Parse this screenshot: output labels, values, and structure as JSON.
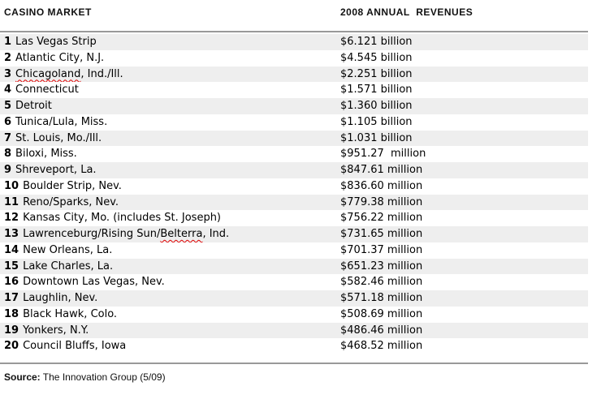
{
  "colors": {
    "stripe": "#eeeeee",
    "rule": "#999999",
    "text": "#000000",
    "squiggle": "#e00000"
  },
  "header": {
    "market_label": "CASINO MARKET",
    "revenue_label": "2008 ANNUAL  REVENUES"
  },
  "source": {
    "label": "Source:",
    "text": " The Innovation Group (5/09)"
  },
  "chart_data": {
    "type": "table",
    "columns": [
      "CASINO MARKET",
      "2008 ANNUAL REVENUES"
    ],
    "rows": [
      {
        "rank": "1",
        "market": "Las Vegas Strip",
        "misspelled": "",
        "suffix": "",
        "revenue": "$6.121 billion",
        "value_usd_millions": 6121
      },
      {
        "rank": "2",
        "market": "Atlantic City, N.J.",
        "misspelled": "",
        "suffix": "",
        "revenue": "$4.545 billion",
        "value_usd_millions": 4545
      },
      {
        "rank": "3",
        "market": "",
        "misspelled": "Chicagoland",
        "suffix": ", Ind./Ill.",
        "revenue": "$2.251 billion",
        "value_usd_millions": 2251
      },
      {
        "rank": "4",
        "market": "Connecticut",
        "misspelled": "",
        "suffix": "",
        "revenue": "$1.571 billion",
        "value_usd_millions": 1571
      },
      {
        "rank": "5",
        "market": "Detroit",
        "misspelled": "",
        "suffix": "",
        "revenue": "$1.360 billion",
        "value_usd_millions": 1360
      },
      {
        "rank": "6",
        "market": "Tunica/Lula, Miss.",
        "misspelled": "",
        "suffix": "",
        "revenue": "$1.105 billion",
        "value_usd_millions": 1105
      },
      {
        "rank": "7",
        "market": "St. Louis, Mo./Ill.",
        "misspelled": "",
        "suffix": "",
        "revenue": "$1.031 billion",
        "value_usd_millions": 1031
      },
      {
        "rank": "8",
        "market": "Biloxi, Miss.",
        "misspelled": "",
        "suffix": "",
        "revenue": "$951.27  million",
        "value_usd_millions": 951.27
      },
      {
        "rank": "9",
        "market": "Shreveport, La.",
        "misspelled": "",
        "suffix": "",
        "revenue": "$847.61 million",
        "value_usd_millions": 847.61
      },
      {
        "rank": "10",
        "market": "Boulder Strip, Nev.",
        "misspelled": "",
        "suffix": "",
        "revenue": "$836.60 million",
        "value_usd_millions": 836.6
      },
      {
        "rank": "11",
        "market": "Reno/Sparks, Nev.",
        "misspelled": "",
        "suffix": "",
        "revenue": "$779.38 million",
        "value_usd_millions": 779.38
      },
      {
        "rank": "12",
        "market": "Kansas City, Mo. (includes St. Joseph)",
        "misspelled": "",
        "suffix": "",
        "revenue": "$756.22 million",
        "value_usd_millions": 756.22
      },
      {
        "rank": "13",
        "market": "Lawrenceburg/Rising Sun/",
        "misspelled": "Belterra",
        "suffix": ", Ind.",
        "revenue": "$731.65 million",
        "value_usd_millions": 731.65
      },
      {
        "rank": "14",
        "market": "New Orleans, La.",
        "misspelled": "",
        "suffix": "",
        "revenue": "$701.37 million",
        "value_usd_millions": 701.37
      },
      {
        "rank": "15",
        "market": "Lake Charles, La.",
        "misspelled": "",
        "suffix": "",
        "revenue": "$651.23 million",
        "value_usd_millions": 651.23
      },
      {
        "rank": "16",
        "market": "Downtown Las Vegas, Nev.",
        "misspelled": "",
        "suffix": "",
        "revenue": "$582.46 million",
        "value_usd_millions": 582.46
      },
      {
        "rank": "17",
        "market": "Laughlin, Nev.",
        "misspelled": "",
        "suffix": "",
        "revenue": "$571.18 million",
        "value_usd_millions": 571.18
      },
      {
        "rank": "18",
        "market": "Black Hawk, Colo.",
        "misspelled": "",
        "suffix": "",
        "revenue": "$508.69 million",
        "value_usd_millions": 508.69
      },
      {
        "rank": "19",
        "market": "Yonkers, N.Y.",
        "misspelled": "",
        "suffix": "",
        "revenue": "$486.46 million",
        "value_usd_millions": 486.46
      },
      {
        "rank": "20",
        "market": "Council Bluffs, Iowa",
        "misspelled": "",
        "suffix": "",
        "revenue": "$468.52 million",
        "value_usd_millions": 468.52
      }
    ]
  }
}
